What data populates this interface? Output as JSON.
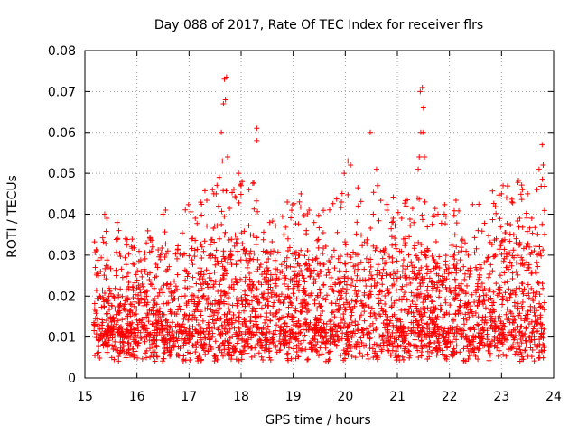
{
  "chart_data": {
    "type": "scatter",
    "title": "Day 088 of 2017, Rate Of TEC Index for receiver flrs",
    "xlabel": "GPS time / hours",
    "ylabel": "ROTI / TECUs",
    "xlim": [
      15,
      24
    ],
    "ylim": [
      0,
      0.08
    ],
    "x_ticks": [
      "15",
      "16",
      "17",
      "18",
      "19",
      "20",
      "21",
      "22",
      "23",
      "24"
    ],
    "y_ticks": [
      "0",
      "0.01",
      "0.02",
      "0.03",
      "0.04",
      "0.05",
      "0.06",
      "0.07",
      "0.08"
    ],
    "grid": true,
    "marker": "+",
    "color": "#ff0000",
    "data_span": [
      15.17,
      23.83
    ],
    "points": [
      [
        15.2,
        0.027
      ],
      [
        15.3,
        0.026
      ],
      [
        15.38,
        0.04
      ],
      [
        15.42,
        0.039
      ],
      [
        15.62,
        0.038
      ],
      [
        15.65,
        0.036
      ],
      [
        15.78,
        0.034
      ],
      [
        16.08,
        0.026
      ],
      [
        16.18,
        0.033
      ],
      [
        16.28,
        0.031
      ],
      [
        16.5,
        0.04
      ],
      [
        16.55,
        0.041
      ],
      [
        16.65,
        0.021
      ],
      [
        16.88,
        0.03
      ],
      [
        17.05,
        0.034
      ],
      [
        17.12,
        0.039
      ],
      [
        17.25,
        0.032
      ],
      [
        17.45,
        0.046
      ],
      [
        17.52,
        0.045
      ],
      [
        17.58,
        0.049
      ],
      [
        17.62,
        0.06
      ],
      [
        17.66,
        0.067
      ],
      [
        17.7,
        0.068
      ],
      [
        17.68,
        0.073
      ],
      [
        17.72,
        0.0735
      ],
      [
        17.74,
        0.054
      ],
      [
        17.64,
        0.053
      ],
      [
        17.9,
        0.044
      ],
      [
        17.95,
        0.05
      ],
      [
        18.0,
        0.047
      ],
      [
        18.02,
        0.048
      ],
      [
        18.15,
        0.046
      ],
      [
        18.3,
        0.058
      ],
      [
        18.3,
        0.061
      ],
      [
        18.55,
        0.038
      ],
      [
        18.82,
        0.035
      ],
      [
        18.9,
        0.034
      ],
      [
        19.12,
        0.043
      ],
      [
        19.15,
        0.045
      ],
      [
        19.4,
        0.038
      ],
      [
        19.98,
        0.05
      ],
      [
        20.05,
        0.053
      ],
      [
        20.1,
        0.052
      ],
      [
        20.25,
        0.042
      ],
      [
        20.48,
        0.06
      ],
      [
        20.6,
        0.051
      ],
      [
        20.62,
        0.047
      ],
      [
        20.8,
        0.041
      ],
      [
        20.92,
        0.039
      ],
      [
        21.4,
        0.051
      ],
      [
        21.42,
        0.054
      ],
      [
        21.45,
        0.06
      ],
      [
        21.44,
        0.07
      ],
      [
        21.48,
        0.071
      ],
      [
        21.5,
        0.066
      ],
      [
        21.5,
        0.06
      ],
      [
        21.52,
        0.054
      ],
      [
        21.53,
        0.043
      ],
      [
        21.78,
        0.04
      ],
      [
        21.9,
        0.04
      ],
      [
        22.3,
        0.033
      ],
      [
        22.55,
        0.036
      ],
      [
        22.9,
        0.034
      ],
      [
        23.0,
        0.045
      ],
      [
        23.03,
        0.047
      ],
      [
        23.2,
        0.043
      ],
      [
        23.4,
        0.046
      ],
      [
        23.5,
        0.045
      ],
      [
        23.58,
        0.039
      ],
      [
        23.68,
        0.046
      ],
      [
        23.72,
        0.051
      ],
      [
        23.78,
        0.057
      ],
      [
        23.8,
        0.052
      ]
    ]
  }
}
